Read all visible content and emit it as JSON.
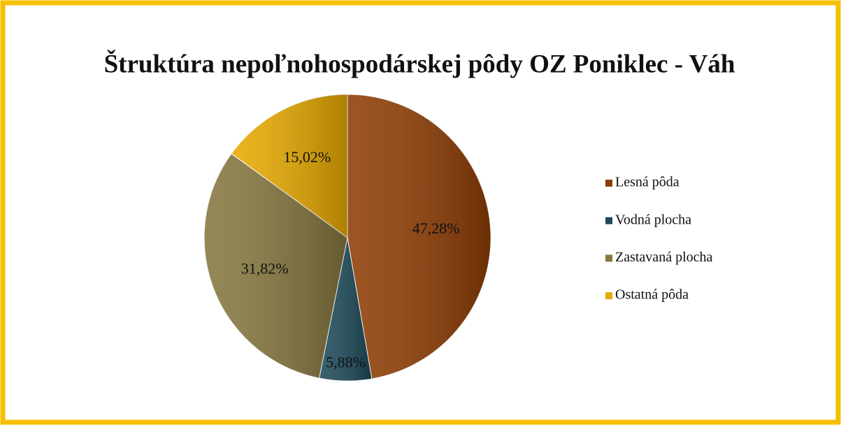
{
  "chart_data": {
    "type": "pie",
    "title": "Štruktúra nepoľnohospodárskej pôdy OZ Poniklec - Váh",
    "categories": [
      "Lesná pôda",
      "Vodná plocha",
      "Zastavaná plocha",
      "Ostatná pôda"
    ],
    "values": [
      47.28,
      5.88,
      31.82,
      15.02
    ],
    "value_labels": [
      "47,28%",
      "5,88%",
      "31,82%",
      "15,02%"
    ],
    "colors": [
      "#8f3d04",
      "#1d4a5a",
      "#86773f",
      "#e8aa00"
    ],
    "legend": "right"
  }
}
